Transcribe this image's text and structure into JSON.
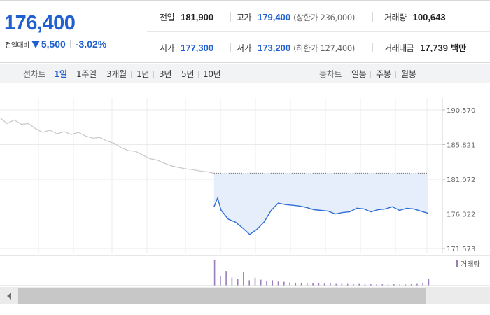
{
  "quote": {
    "price": "176,400",
    "change_label": "전일대비",
    "change_amount": "5,500",
    "change_percent": "-3.02%",
    "direction": "down",
    "color_down": "#1f5fcf",
    "color_up": "#d21a1a"
  },
  "stats": {
    "prev_close": {
      "label": "전일",
      "value": "181,900"
    },
    "high": {
      "label": "고가",
      "value": "179,400",
      "limit": "(상한가 236,000)"
    },
    "volume": {
      "label": "거래량",
      "value": "100,643"
    },
    "open": {
      "label": "시가",
      "value": "177,300"
    },
    "low": {
      "label": "저가",
      "value": "173,200",
      "limit": "(하한가 127,400)"
    },
    "amount": {
      "label": "거래대금",
      "value": "17,739",
      "unit": "백만"
    }
  },
  "period_bar": {
    "line_chart_label": "선차트",
    "line_options": [
      "1일",
      "1주일",
      "3개월",
      "1년",
      "3년",
      "5년",
      "10년"
    ],
    "selected": "1일",
    "candle_chart_label": "봉차트",
    "candle_options": [
      "일봉",
      "주봉",
      "월봉"
    ]
  },
  "chart_data": {
    "type": "line",
    "title": "",
    "ylim": [
      171573,
      190570
    ],
    "y_ticks": [
      190570,
      185821,
      181072,
      176322,
      171573
    ],
    "y_tick_labels": [
      "190,570",
      "185,821",
      "181,072",
      "176,322",
      "171,573"
    ],
    "prev_close": 181900,
    "previous_day_series": {
      "color": "#c8c8c8",
      "points": [
        [
          0,
          189500
        ],
        [
          1,
          188700
        ],
        [
          2,
          189200
        ],
        [
          3,
          188600
        ],
        [
          4,
          188700
        ],
        [
          5,
          188000
        ],
        [
          6,
          187500
        ],
        [
          7,
          187800
        ],
        [
          8,
          187300
        ],
        [
          9,
          187600
        ],
        [
          10,
          187200
        ],
        [
          11,
          187500
        ],
        [
          12,
          187000
        ],
        [
          13,
          186700
        ],
        [
          14,
          186800
        ],
        [
          15,
          186300
        ],
        [
          16,
          186000
        ],
        [
          17,
          185400
        ],
        [
          18,
          185000
        ],
        [
          19,
          184900
        ],
        [
          20,
          184400
        ],
        [
          21,
          183900
        ],
        [
          22,
          183700
        ],
        [
          23,
          183300
        ],
        [
          24,
          182900
        ],
        [
          25,
          182700
        ],
        [
          26,
          182500
        ],
        [
          27,
          182400
        ],
        [
          28,
          182200
        ],
        [
          29,
          182100
        ],
        [
          30,
          181900
        ]
      ]
    },
    "today_series": {
      "color": "#2f6ed6",
      "fill": "#e6eefb",
      "points": [
        [
          30,
          177300
        ],
        [
          30.5,
          178500
        ],
        [
          31,
          176800
        ],
        [
          32,
          175600
        ],
        [
          33,
          175200
        ],
        [
          34,
          174400
        ],
        [
          35,
          173500
        ],
        [
          36,
          174200
        ],
        [
          37,
          175200
        ],
        [
          38,
          176800
        ],
        [
          39,
          177800
        ],
        [
          40,
          177600
        ],
        [
          41,
          177500
        ],
        [
          42,
          177400
        ],
        [
          43,
          177200
        ],
        [
          44,
          176900
        ],
        [
          45,
          176800
        ],
        [
          46,
          176700
        ],
        [
          47,
          176300
        ],
        [
          48,
          176500
        ],
        [
          49,
          176600
        ],
        [
          50,
          177100
        ],
        [
          51,
          177000
        ],
        [
          52,
          176600
        ],
        [
          53,
          176900
        ],
        [
          54,
          177000
        ],
        [
          55,
          177300
        ],
        [
          56,
          176800
        ],
        [
          57,
          177100
        ],
        [
          58,
          177000
        ],
        [
          59,
          176700
        ],
        [
          60,
          176400
        ]
      ]
    },
    "volume_label": "거래량",
    "volume_color": "#9a7ebc",
    "volume_heights": [
      0.95,
      0.35,
      0.55,
      0.3,
      0.25,
      0.5,
      0.2,
      0.3,
      0.22,
      0.18,
      0.2,
      0.15,
      0.14,
      0.12,
      0.1,
      0.1,
      0.09,
      0.08,
      0.1,
      0.07,
      0.08,
      0.06,
      0.07,
      0.06,
      0.05,
      0.06,
      0.05,
      0.05,
      0.04,
      0.05,
      0.04,
      0.05,
      0.04,
      0.04,
      0.05,
      0.06,
      0.1,
      0.25
    ]
  }
}
